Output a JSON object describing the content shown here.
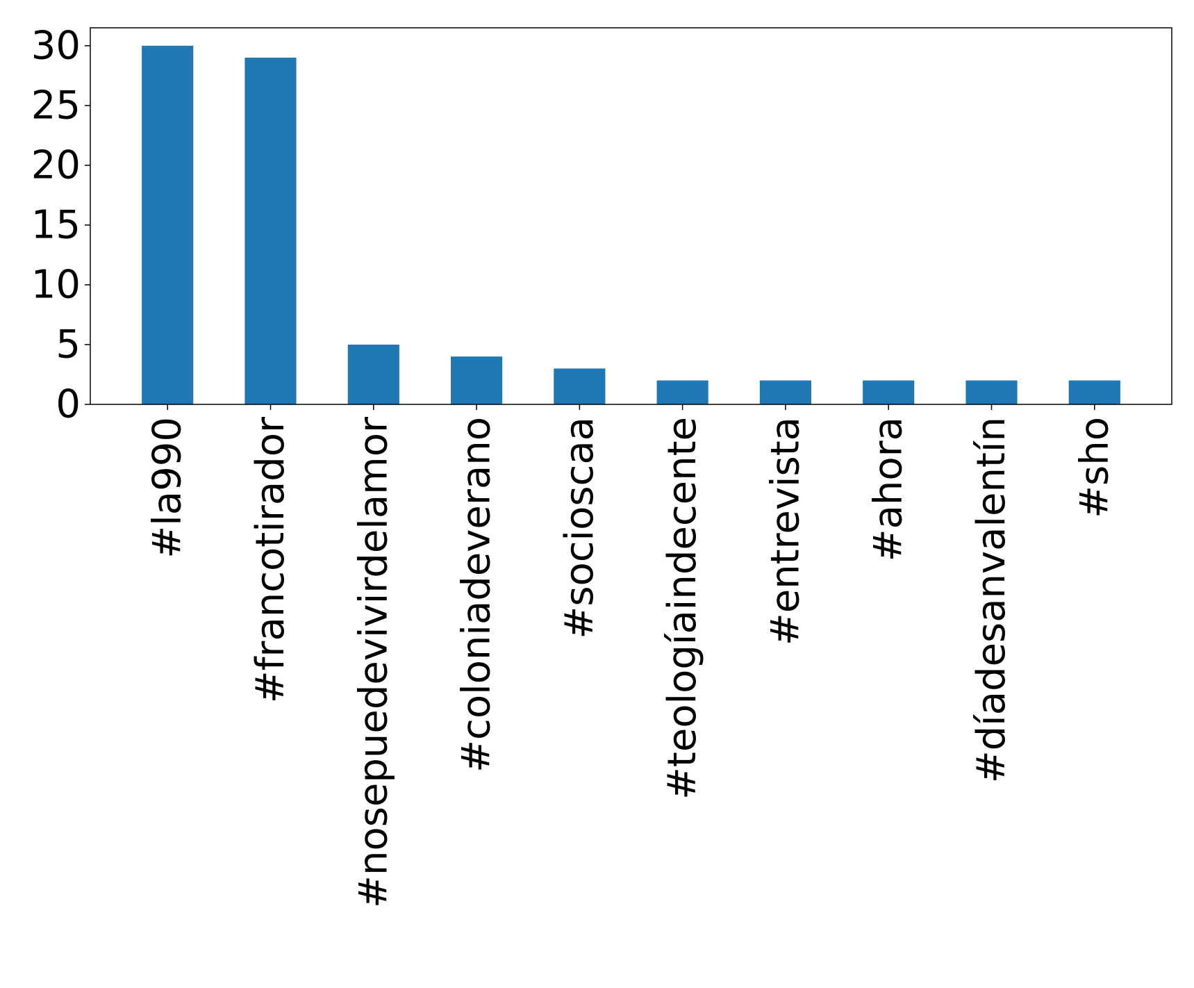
{
  "chart_data": {
    "type": "bar",
    "title": "",
    "xlabel": "",
    "ylabel": "",
    "categories": [
      "#la990",
      "#francotirador",
      "#nosepuedevivirdelamor",
      "#coloniadeverano",
      "#socioscaa",
      "#teologíaindecente",
      "#entrevista",
      "#ahora",
      "#díadesanvalentín",
      "#sho"
    ],
    "values": [
      30,
      29,
      5,
      4,
      3,
      2,
      2,
      2,
      2,
      2
    ],
    "ylim": [
      0,
      31.5
    ],
    "yticks": [
      0,
      5,
      10,
      15,
      20,
      25,
      30
    ],
    "grid": false,
    "legend": "none",
    "colors": {
      "bar": "#1f77b4",
      "axes": "#000000",
      "background": "#ffffff"
    }
  }
}
